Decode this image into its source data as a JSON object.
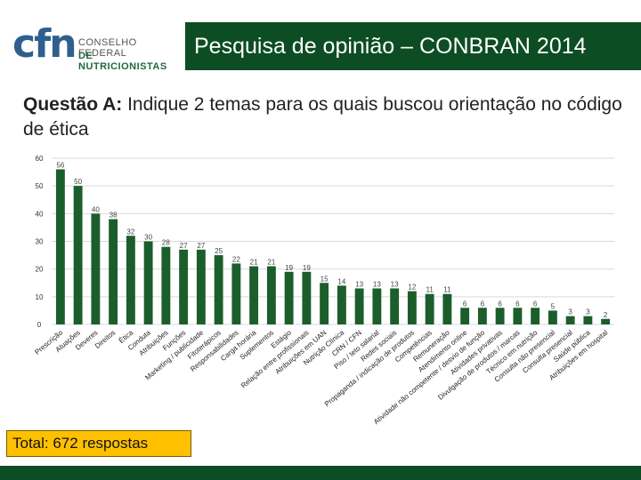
{
  "logo": {
    "mark": "cfn",
    "org_line1": "CONSELHO FEDERAL",
    "org_line2": "DE NUTRICIONISTAS"
  },
  "header": {
    "title": "Pesquisa de opinião – CONBRAN 2014"
  },
  "question": {
    "label": "Questão A:",
    "text": "Indique 2 temas para os quais buscou orientação no código de ética"
  },
  "total_box": {
    "text": "Total: 672 respostas"
  },
  "colors": {
    "bar": "#1b5e2c",
    "header_bg": "#0d4d24",
    "total_bg": "#ffc000",
    "grid": "#d9d9d9"
  },
  "chart_data": {
    "type": "bar",
    "grid": true,
    "legend": "none",
    "yticks": [
      0,
      10,
      20,
      30,
      40,
      50,
      60
    ],
    "ylim": [
      0,
      60
    ],
    "categories": [
      "Prescrição",
      "Atuações",
      "Deveres",
      "Direitos",
      "Ética",
      "Conduta",
      "Atribuições",
      "Funções",
      "Marketing / publicidade",
      "Fitoterápicos",
      "Responsabilidades",
      "Carga horária",
      "Suplementos",
      "Estágio",
      "Relação entre profissionais",
      "Atribuições em UAN",
      "Nutrição Clínica",
      "CRN / CFN",
      "Piso / teto salarial",
      "Redes sociais",
      "Propaganda / indicação de produtos",
      "Competências",
      "Remuneração",
      "Atendimento online",
      "Atividade não competente / desvio de função",
      "Atividades privativas",
      "Divulgação de produtos / marcas",
      "Técnico em nutrição",
      "Consulta não presencial",
      "Consulta presencial",
      "Saúde pública",
      "Atribuições em hospital"
    ],
    "values": [
      56,
      50,
      40,
      38,
      32,
      30,
      28,
      27,
      27,
      25,
      22,
      21,
      21,
      19,
      19,
      15,
      14,
      13,
      13,
      13,
      12,
      11,
      11,
      6,
      6,
      6,
      6,
      6,
      5,
      3,
      3,
      2
    ]
  }
}
